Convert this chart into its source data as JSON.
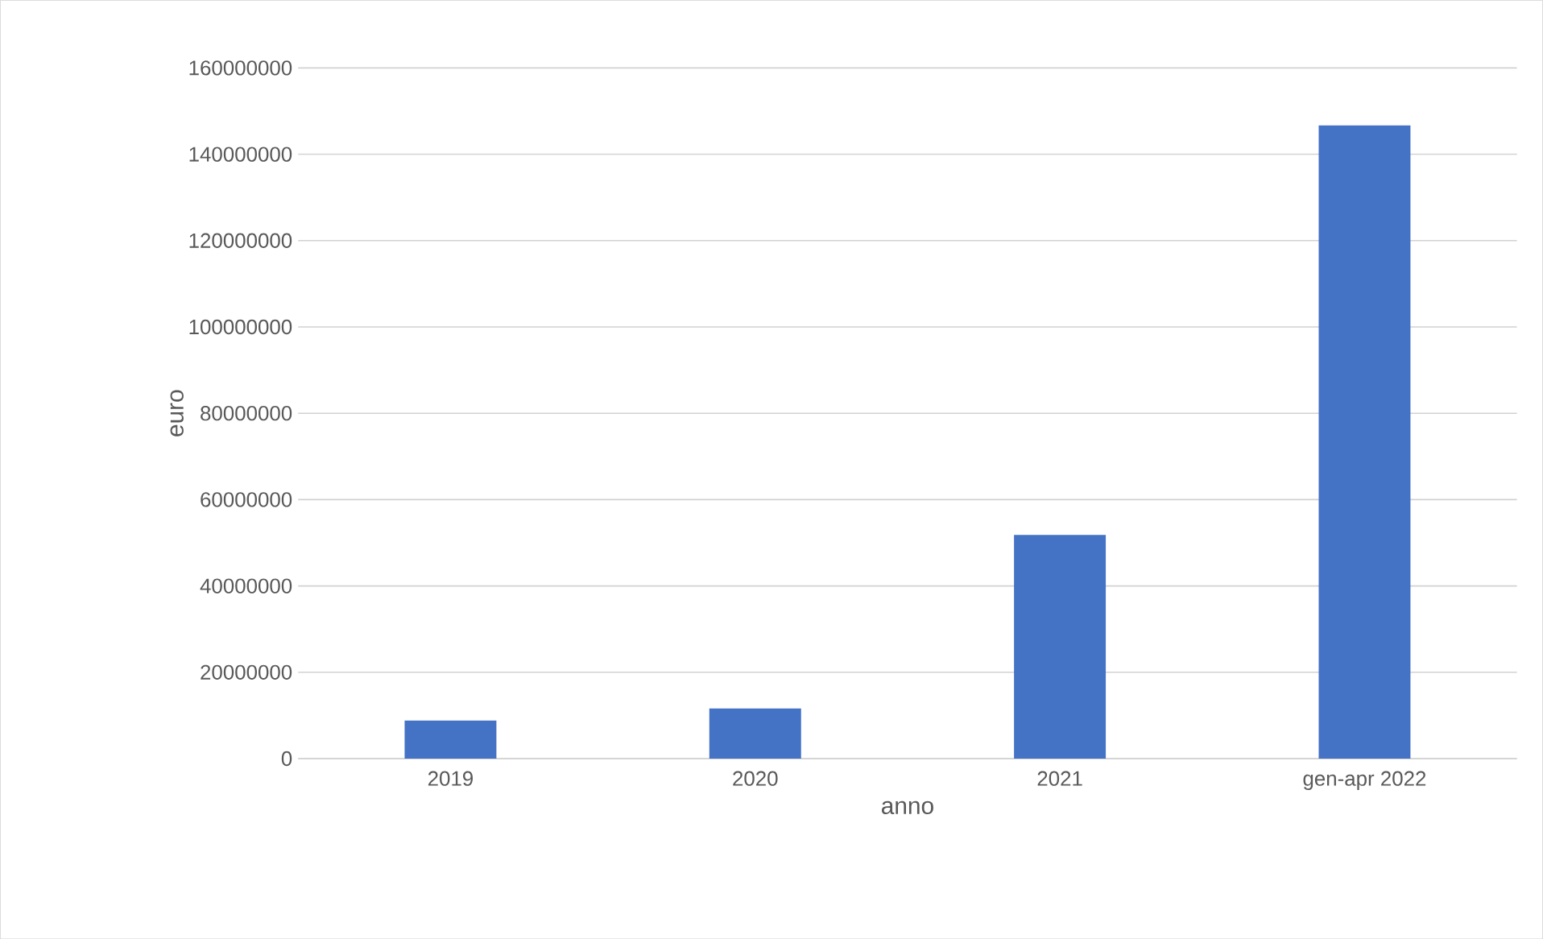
{
  "chart_data": {
    "type": "bar",
    "xlabel": "anno",
    "ylabel": "euro",
    "categories": [
      "2019",
      "2020",
      "2021",
      "gen-apr 2022"
    ],
    "values": [
      8800000,
      11600000,
      51800000,
      146700000
    ],
    "color": "#4472c4",
    "ylim": [
      0,
      160000000
    ],
    "yticks": [
      0,
      20000000,
      40000000,
      60000000,
      80000000,
      100000000,
      120000000,
      140000000,
      160000000
    ],
    "grid": "y"
  }
}
